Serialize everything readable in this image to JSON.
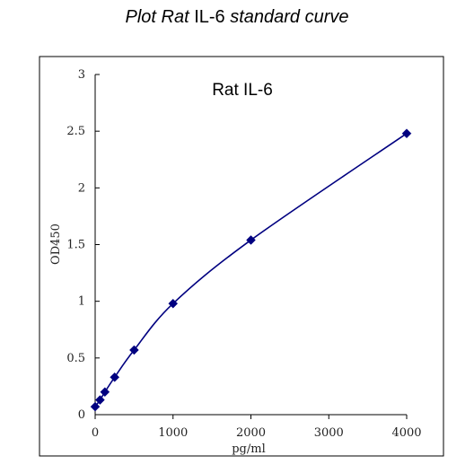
{
  "title": {
    "part1": "Plot Rat",
    "part2": " IL-6 ",
    "part3": "standard curve"
  },
  "chart_data": {
    "type": "scatter",
    "title": "Rat IL-6",
    "xlabel": "pg/ml",
    "ylabel": "OD450",
    "xlim": [
      0,
      4000
    ],
    "ylim": [
      0,
      3
    ],
    "xticks": [
      0,
      1000,
      2000,
      3000,
      4000
    ],
    "yticks": [
      0,
      0.5,
      1,
      1.5,
      2,
      2.5,
      3
    ],
    "xtick_labels": [
      "0",
      "1000",
      "2000",
      "3000",
      "4000"
    ],
    "ytick_labels": [
      "0",
      "0.5",
      "1",
      "1.5",
      "2",
      "2.5",
      "3"
    ],
    "series": [
      {
        "marker": "diamond",
        "color": "#000080",
        "curve": "smooth",
        "x": [
          0,
          62.5,
          125,
          250,
          500,
          1000,
          2000,
          4000
        ],
        "y": [
          0.07,
          0.13,
          0.2,
          0.33,
          0.57,
          0.98,
          1.54,
          2.48
        ]
      }
    ],
    "grid": false,
    "legend": "none"
  }
}
